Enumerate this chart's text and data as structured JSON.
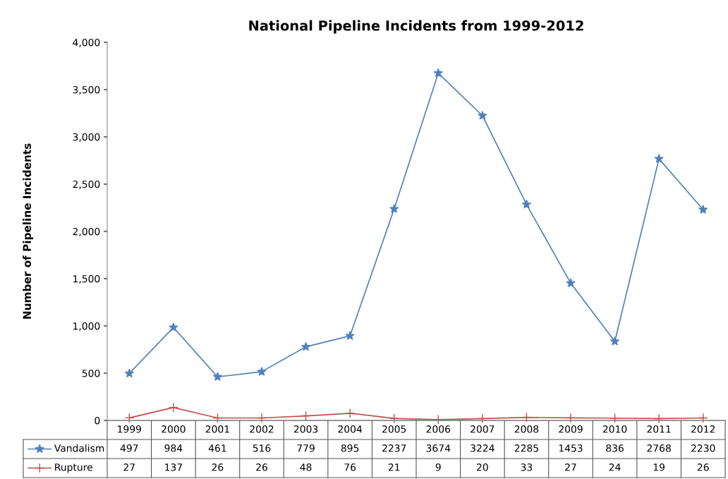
{
  "chart_data": {
    "type": "line",
    "title": "National Pipeline Incidents from 1999-2012",
    "ylabel": "Number of Pipeline Incidents",
    "categories": [
      "1999",
      "2000",
      "2001",
      "2002",
      "2003",
      "2004",
      "2005",
      "2006",
      "2007",
      "2008",
      "2009",
      "2010",
      "2011",
      "2012"
    ],
    "series": [
      {
        "name": "Vandalism",
        "color": "#4f81bd",
        "marker": "star",
        "values": [
          497,
          984,
          461,
          516,
          779,
          895,
          2237,
          3674,
          3224,
          2285,
          1453,
          836,
          2768,
          2230
        ]
      },
      {
        "name": "Rupture",
        "color": "#c0504d",
        "marker": "cross",
        "values": [
          27,
          137,
          26,
          26,
          48,
          76,
          21,
          9,
          20,
          33,
          27,
          24,
          19,
          26
        ]
      }
    ],
    "ylim": [
      0,
      4000
    ],
    "yticks": [
      0,
      500,
      {
        "value": 1000,
        "label": "1,000"
      },
      {
        "value": 1500,
        "label": "1,500"
      },
      {
        "value": 2000,
        "label": "2,000"
      },
      {
        "value": 2500,
        "label": "2,500"
      },
      {
        "value": 3000,
        "label": "3,000"
      },
      {
        "value": 3500,
        "label": "3,500"
      },
      {
        "value": 4000,
        "label": "4,000"
      }
    ],
    "data_labels": true,
    "grid": false,
    "legend": "bottom left",
    "line_style": "solid"
  }
}
